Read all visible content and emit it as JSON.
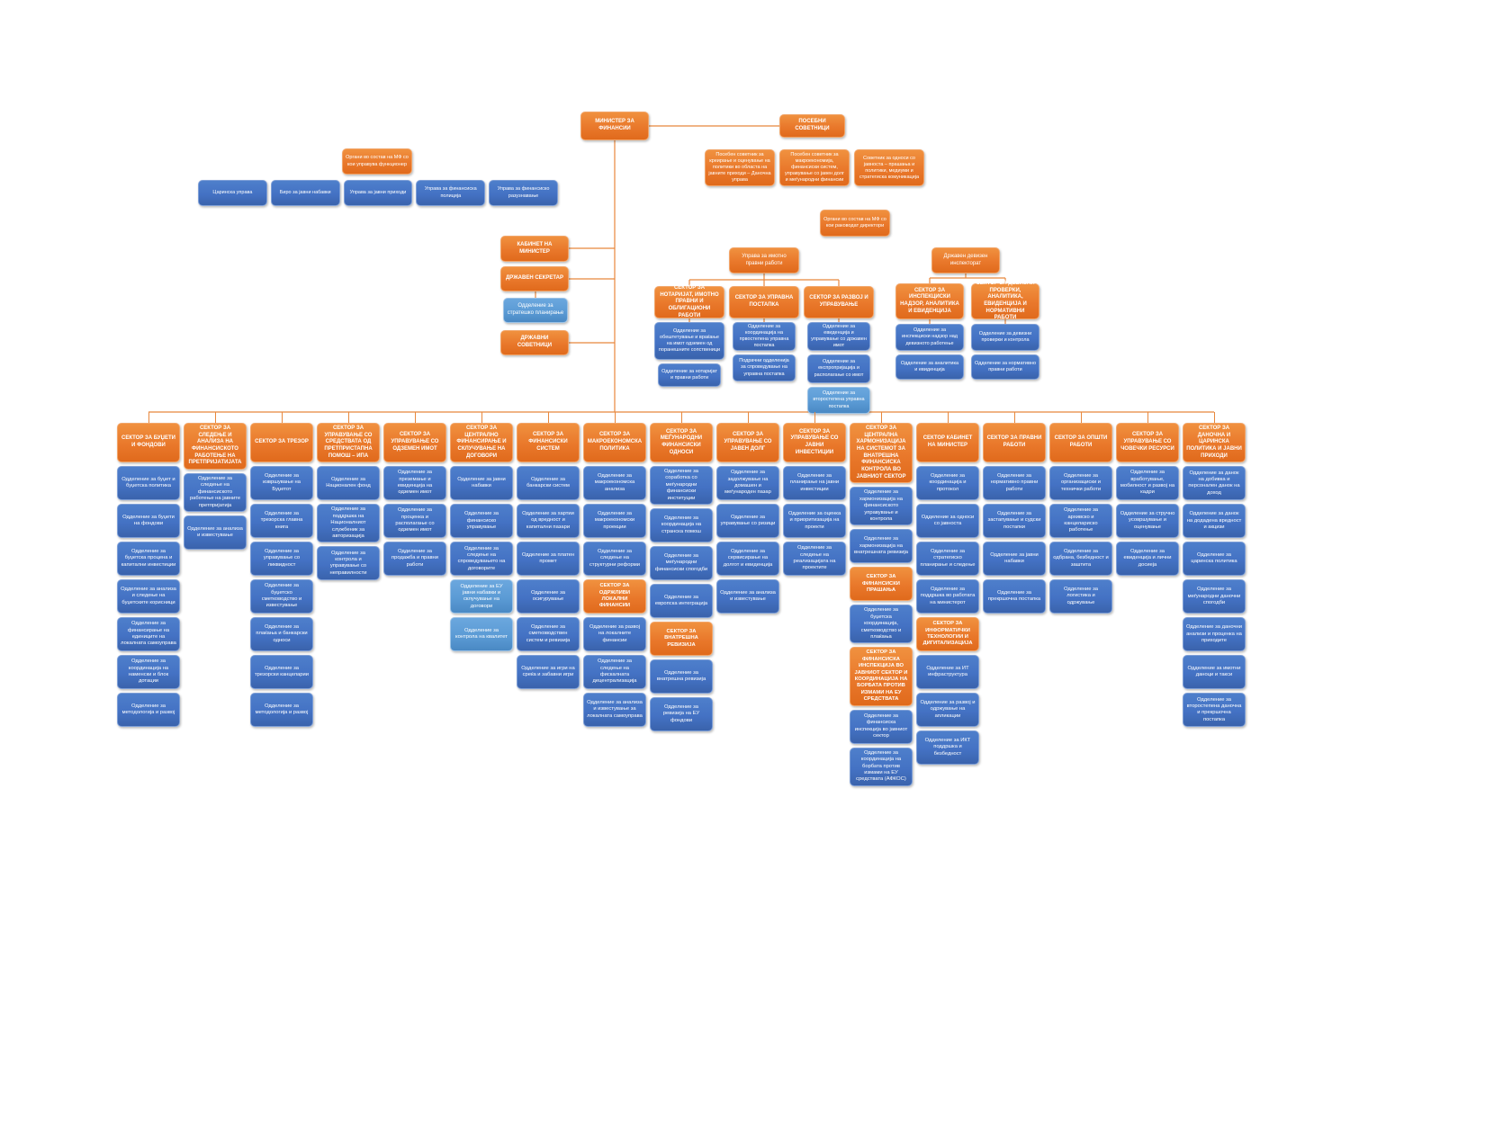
{
  "colors": {
    "orange": "#ED7D31",
    "blue": "#4472C4",
    "light_blue": "#5B9BD5",
    "connector": "#E8873C",
    "background": "#FFFFFF"
  },
  "top": {
    "minister": "МИНИСТЕР ЗА ФИНАНСИИ",
    "special_advisors": "ПОСЕБНИ СОВЕТНИЦИ",
    "advisor_notes": [
      "Посебен советник за креирање и оценување на политики во областа на јавните приходи – Даночна управа",
      "Посебен советник за макроекономија, финансиски систем, управување со јавен долг и меѓународни финансии",
      "Советник за односи со јавноста – прашања и политики, медиуми и стратегиска комуникација"
    ],
    "organs_managed": {
      "label": "Органи во состав на МФ со кои управува функционер",
      "items": [
        "Царинска управа",
        "Биро за јавни набавки",
        "Управа за јавни приходи",
        "Управа за финансиска полиција",
        "Управа за финансиско разузнавање"
      ]
    },
    "organs_directors": "Органи во состав на МФ со кои раководат директори",
    "cabinet": "КАБИНЕТ НА МИНИСТЕР",
    "state_secretary": "ДРЖАВЕН СЕКРЕТАР",
    "strategic_planning": "Одделение за стратешко планирање",
    "state_advisors": "ДРЖАВНИ СОВЕТНИЦИ"
  },
  "property_admin": {
    "head": "Управа за имотно правни работи",
    "sectors": [
      {
        "label": "СЕКТОР ЗА НОТАРИЈАТ, ИМОТНО ПРАВНИ И ОБЛИГАЦИОНИ РАБОТИ",
        "children": [
          {
            "label": "Одделение за обештетување и враќање на имот одземен од поранешните сопственици",
            "variant": "blue"
          },
          {
            "label": "Одделение за нотаријат и правни работи",
            "variant": "blue"
          }
        ]
      },
      {
        "label": "СЕКТОР ЗА УПРАВНА ПОСТАПКА",
        "children": [
          {
            "label": "Одделение за координација на првостепена управна постапка",
            "variant": "blue"
          },
          {
            "label": "Подрачни одделенија за спроведување на управна постапка",
            "variant": "blue"
          }
        ]
      },
      {
        "label": "СЕКТОР ЗА РАЗВОЈ И УПРАВУВАЊЕ",
        "children": [
          {
            "label": "Одделение за евиденција и управување со државен имот",
            "variant": "blue"
          },
          {
            "label": "Одделение за експропријација и располагање со имот",
            "variant": "blue"
          },
          {
            "label": "Одделение за второстепена управна постапка",
            "variant": "light"
          }
        ]
      }
    ]
  },
  "fx_inspectorate": {
    "head": "Државен девизен инспекторат",
    "sectors": [
      {
        "label": "СЕКТОР ЗА ИНСПЕКЦИСКИ НАДЗОР, АНАЛИТИКА И ЕВИДЕНЦИЈА",
        "children": [
          {
            "label": "Одделение за инспекциски надзор над девизното работење",
            "variant": "blue"
          },
          {
            "label": "Одделение за аналитика и евиденција",
            "variant": "blue"
          }
        ]
      },
      {
        "label": "СЕКТОР ЗА ДЕВИЗНИ ПРОВЕРКИ, АНАЛИТИКА, ЕВИДЕНЦИЈА И НОРМАТИВНИ РАБОТИ",
        "children": [
          {
            "label": "Одделение за девизни проверки и контрола",
            "variant": "blue"
          },
          {
            "label": "Одделение за нормативно правни работи",
            "variant": "blue"
          }
        ]
      }
    ]
  },
  "main_sectors": [
    {
      "label": "СЕКТОР ЗА БУЏЕТИ И ФОНДОВИ",
      "items": [
        {
          "label": "Одделение за буџет и буџетска политика",
          "type": "blue"
        },
        {
          "label": "Одделение за буџети на фондови",
          "type": "blue"
        },
        {
          "label": "Одделение за буџетска процена и капитални инвестиции",
          "type": "blue"
        },
        {
          "label": "Одделение за анализа и следење на буџетските корисници",
          "type": "blue"
        },
        {
          "label": "Одделение за финансирање на единиците на локалната самоуправа",
          "type": "blue"
        },
        {
          "label": "Одделение за координација на наменски и блок дотации",
          "type": "blue"
        },
        {
          "label": "Одделение за методологија и развој",
          "type": "blue"
        }
      ]
    },
    {
      "label": "СЕКТОР ЗА СЛЕДЕЊЕ И АНАЛИЗА НА ФИНАНСИСКОТО РАБОТЕЊЕ НА ПРЕТПРИЈАТИЈАТА",
      "items": [
        {
          "label": "Одделение за следење на финансиското работење на јавните претпријатија",
          "type": "blue"
        },
        {
          "label": "Одделение за анализа и известување",
          "type": "blue"
        }
      ]
    },
    {
      "label": "СЕКТОР ЗА ТРЕЗОР",
      "items": [
        {
          "label": "Одделение за извршување на Буџетот",
          "type": "blue"
        },
        {
          "label": "Одделение за трезорска главна книга",
          "type": "blue"
        },
        {
          "label": "Одделение за управување со ликвидност",
          "type": "blue"
        },
        {
          "label": "Одделение за буџетско сметководство и известување",
          "type": "blue"
        },
        {
          "label": "Одделение за плаќања и банкарски односи",
          "type": "blue"
        },
        {
          "label": "Одделение за трезорски канцеларии",
          "type": "blue"
        },
        {
          "label": "Одделение за методологија и развој",
          "type": "blue"
        }
      ]
    },
    {
      "label": "СЕКТОР ЗА УПРАВУВАЊЕ СО СРЕДСТВАТА ОД ПРЕТПРИСТАПНА ПОМОШ – ИПА",
      "items": [
        {
          "label": "Одделение за Национален фонд",
          "type": "blue"
        },
        {
          "label": "Одделение за поддршка на Националниот службеник за авторизација",
          "type": "blue"
        },
        {
          "label": "Одделение за контрола и управување со неправилности",
          "type": "blue"
        }
      ]
    },
    {
      "label": "СЕКТОР ЗА УПРАВУВАЊЕ СО ОДЗЕМЕН ИМОТ",
      "items": [
        {
          "label": "Одделение за преземање и евиденција на одземен имот",
          "type": "blue"
        },
        {
          "label": "Одделение за проценка и располагање со одземен имот",
          "type": "blue"
        },
        {
          "label": "Одделение за продажба и правни работи",
          "type": "blue"
        }
      ]
    },
    {
      "label": "СЕКТОР ЗА ЦЕНТРАЛНО ФИНАНСИРАЊЕ И СКЛУЧУВАЊЕ НА ДОГОВОРИ",
      "items": [
        {
          "label": "Одделение за јавни набавки",
          "type": "blue"
        },
        {
          "label": "Одделение за финансиско управување",
          "type": "blue"
        },
        {
          "label": "Одделение за следење на спроведувањето на договорите",
          "type": "blue"
        },
        {
          "label": "Одделение за ЕУ јавни набавки и склучување на договори",
          "type": "light"
        },
        {
          "label": "Одделение за контрола на квалитет",
          "type": "light"
        }
      ]
    },
    {
      "label": "СЕКТОР ЗА ФИНАНСИСКИ СИСТЕМ",
      "items": [
        {
          "label": "Одделение за банкарски систем",
          "type": "blue"
        },
        {
          "label": "Одделение за хартии од вредност и капитални пазари",
          "type": "blue"
        },
        {
          "label": "Одделение за платен промет",
          "type": "blue"
        },
        {
          "label": "Одделение за осигурување",
          "type": "blue"
        },
        {
          "label": "Одделение за сметководствен систем и ревизија",
          "type": "blue"
        },
        {
          "label": "Одделение за игри на среќа и забавни игри",
          "type": "blue"
        }
      ]
    },
    {
      "label": "СЕКТОР ЗА МАКРОЕКОНОМСКА ПОЛИТИКА",
      "items": [
        {
          "label": "Одделение за макроекономска анализа",
          "type": "blue"
        },
        {
          "label": "Одделение за макроекономски проекции",
          "type": "blue"
        },
        {
          "label": "Одделение за следење на структурни реформи",
          "type": "blue"
        },
        {
          "label": "СЕКТОР ЗА ОДРЖЛИВИ ЛОКАЛНИ ФИНАНСИИ",
          "type": "orange"
        },
        {
          "label": "Одделение за развој на локалните финансии",
          "type": "blue"
        },
        {
          "label": "Одделение за следење на фискалната децентрализација",
          "type": "blue"
        },
        {
          "label": "Одделение за анализа и известување за локалната самоуправа",
          "type": "blue"
        }
      ]
    },
    {
      "label": "СЕКТОР ЗА МЕЃУНАРОДНИ ФИНАНСИСКИ ОДНОСИ",
      "items": [
        {
          "label": "Одделение за соработка со меѓународни финансиски институции",
          "type": "blue"
        },
        {
          "label": "Одделение за координација на странска помош",
          "type": "blue"
        },
        {
          "label": "Одделение за меѓународни финансиски спогодби",
          "type": "blue"
        },
        {
          "label": "Одделение за европска интеграција",
          "type": "blue"
        },
        {
          "label": "СЕКТОР ЗА ВНАТРЕШНА РЕВИЗИЈА",
          "type": "orange"
        },
        {
          "label": "Одделение за внатрешна ревизија",
          "type": "blue"
        },
        {
          "label": "Одделение за ревизија на ЕУ фондови",
          "type": "blue"
        }
      ]
    },
    {
      "label": "СЕКТОР ЗА УПРАВУВАЊЕ СО ЈАВЕН ДОЛГ",
      "items": [
        {
          "label": "Одделение за задолжување на домашен и меѓународен пазар",
          "type": "blue"
        },
        {
          "label": "Одделение за управување со ризици",
          "type": "blue"
        },
        {
          "label": "Одделение за сервисирање на долгот и евиденција",
          "type": "blue"
        },
        {
          "label": "Одделение за анализа и известување",
          "type": "blue"
        }
      ]
    },
    {
      "label": "СЕКТОР ЗА УПРАВУВАЊЕ СО ЈАВНИ ИНВЕСТИЦИИ",
      "items": [
        {
          "label": "Одделение за планирање на јавни инвестиции",
          "type": "blue"
        },
        {
          "label": "Одделение за оценка и приоритизација на проекти",
          "type": "blue"
        },
        {
          "label": "Одделение за следење на реализацијата на проектите",
          "type": "blue"
        }
      ]
    },
    {
      "label": "СЕКТОР ЗА ЦЕНТРАЛНА ХАРМОНИЗАЦИЈА НА СИСТЕМОТ ЗА ВНАТРЕШНА ФИНАНСИСКА КОНТРОЛА ВО ЈАВНИОТ СЕКТОР",
      "items": [
        {
          "label": "Одделение за хармонизација на финансиското управување и контрола",
          "type": "blue"
        },
        {
          "label": "Одделение за хармонизација на внатрешната ревизија",
          "type": "blue"
        },
        {
          "label": "СЕКТОР ЗА ФИНАНСИСКИ ПРАШАЊА",
          "type": "orange"
        },
        {
          "label": "Одделение за буџетска координација, сметководство и плаќања",
          "type": "blue"
        },
        {
          "label": "СЕКТОР ЗА ФИНАНСИСКА ИНСПЕКЦИЈА ВО ЈАВНИОТ СЕКТОР И КООРДИНАЦИЈА НА БОРБАТА ПРОТИВ ИЗМАМИ НА ЕУ СРЕДСТВАТА",
          "type": "orange"
        },
        {
          "label": "Одделение за финансиска инспекција во јавниот сектор",
          "type": "blue"
        },
        {
          "label": "Одделение за координација на борбата против измами на ЕУ средствата (АФКОС)",
          "type": "blue"
        }
      ]
    },
    {
      "label": "СЕКТОР КАБИНЕТ НА МИНИСТЕР",
      "items": [
        {
          "label": "Одделение за координација и протокол",
          "type": "blue"
        },
        {
          "label": "Одделение за односи со јавноста",
          "type": "blue"
        },
        {
          "label": "Одделение за стратегиско планирање и следење",
          "type": "blue"
        },
        {
          "label": "Одделение за поддршка во работата на министерот",
          "type": "blue"
        },
        {
          "label": "СЕКТОР ЗА ИНФОРМАТИЧКИ ТЕХНОЛОГИИ И ДИГИТАЛИЗАЦИЈА",
          "type": "orange"
        },
        {
          "label": "Одделение за ИТ инфраструктура",
          "type": "blue"
        },
        {
          "label": "Одделение за развој и одржување на апликации",
          "type": "blue"
        },
        {
          "label": "Одделение за ИКТ поддршка и безбедност",
          "type": "blue"
        }
      ]
    },
    {
      "label": "СЕКТОР ЗА ПРАВНИ РАБОТИ",
      "items": [
        {
          "label": "Одделение за нормативно правни работи",
          "type": "blue"
        },
        {
          "label": "Одделение за застапување и судски постапки",
          "type": "blue"
        },
        {
          "label": "Одделение за јавни набавки",
          "type": "blue"
        },
        {
          "label": "Одделение за прекршочна постапка",
          "type": "blue"
        }
      ]
    },
    {
      "label": "СЕКТОР ЗА ОПШТИ РАБОТИ",
      "items": [
        {
          "label": "Одделение за организациски и технички работи",
          "type": "blue"
        },
        {
          "label": "Одделение за архивско и канцелариско работење",
          "type": "blue"
        },
        {
          "label": "Одделение за одбрана, безбедност и заштита",
          "type": "blue"
        },
        {
          "label": "Одделение за логистика и одржување",
          "type": "blue"
        }
      ]
    },
    {
      "label": "СЕКТОР ЗА УПРАВУВАЊЕ СО ЧОВЕЧКИ РЕСУРСИ",
      "items": [
        {
          "label": "Одделение за вработување, мобилност и развој на кадри",
          "type": "blue"
        },
        {
          "label": "Одделение за стручно усовршување и оценување",
          "type": "blue"
        },
        {
          "label": "Одделение за евиденција и лични досиеја",
          "type": "blue"
        }
      ]
    },
    {
      "label": "СЕКТОР ЗА ДАНОЧНА И ЦАРИНСКА ПОЛИТИКА И ЈАВНИ ПРИХОДИ",
      "items": [
        {
          "label": "Одделение за данок на добивка и персонален данок на доход",
          "type": "blue"
        },
        {
          "label": "Одделение за данок на додадена вредност и акцизи",
          "type": "blue"
        },
        {
          "label": "Одделение за царинска политика",
          "type": "blue"
        },
        {
          "label": "Одделение за меѓународни даночни спогодби",
          "type": "blue"
        },
        {
          "label": "Одделение за даночни анализи и проценка на приходите",
          "type": "blue"
        },
        {
          "label": "Одделение за имотни даноци и такси",
          "type": "blue"
        },
        {
          "label": "Одделение за второстепена даночна и прекршочна постапка",
          "type": "blue"
        }
      ]
    }
  ]
}
